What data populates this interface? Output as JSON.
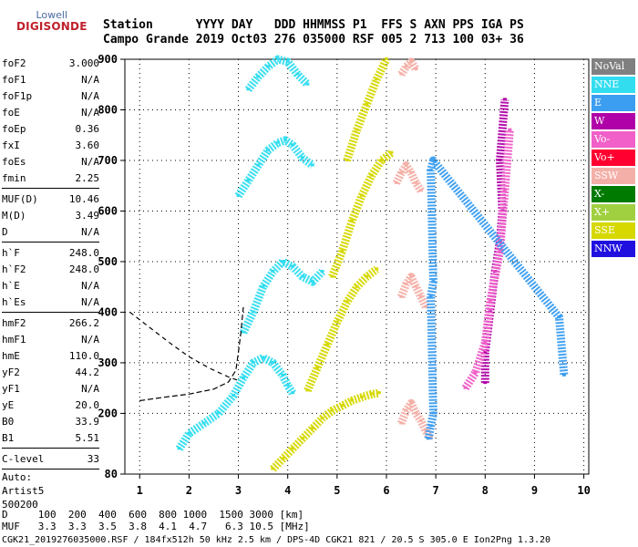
{
  "logo": {
    "line1": "Lowell",
    "line2": "DIGISONDE"
  },
  "header": {
    "labels": [
      "Station",
      "YYYY",
      "DAY",
      "DDD",
      "HHMMSS",
      "P1",
      "FFS",
      "S",
      "AXN",
      "PPS",
      "IGA",
      "PS"
    ],
    "values": [
      "Campo Grande",
      "2019",
      "Oct03",
      "276",
      "035000",
      "RSF",
      "005",
      "2",
      "713",
      "100",
      "03+",
      "36"
    ]
  },
  "params": [
    [
      {
        "name": "foF2",
        "value": "3.000"
      },
      {
        "name": "foF1",
        "value": "N/A"
      },
      {
        "name": "foF1p",
        "value": "N/A"
      },
      {
        "name": "foE",
        "value": "N/A"
      },
      {
        "name": "foEp",
        "value": "0.36"
      },
      {
        "name": "fxI",
        "value": "3.60"
      },
      {
        "name": "foEs",
        "value": "N/A"
      },
      {
        "name": "fmin",
        "value": "2.25"
      }
    ],
    [
      {
        "name": "MUF(D)",
        "value": "10.46"
      },
      {
        "name": "M(D)",
        "value": "3.49"
      },
      {
        "name": "D",
        "value": "N/A"
      }
    ],
    [
      {
        "name": "h`F",
        "value": "248.0"
      },
      {
        "name": "h`F2",
        "value": "248.0"
      },
      {
        "name": "h`E",
        "value": "N/A"
      },
      {
        "name": "h`Es",
        "value": "N/A"
      }
    ],
    [
      {
        "name": "hmF2",
        "value": "266.2"
      },
      {
        "name": "hmF1",
        "value": "N/A"
      },
      {
        "name": "hmE",
        "value": "110.0"
      },
      {
        "name": "yF2",
        "value": "44.2"
      },
      {
        "name": "yF1",
        "value": "N/A"
      },
      {
        "name": "yE",
        "value": "20.0"
      },
      {
        "name": "B0",
        "value": "33.9"
      },
      {
        "name": "B1",
        "value": "5.51"
      }
    ],
    [
      {
        "name": "C-level",
        "value": "33"
      }
    ]
  ],
  "auto": {
    "line1": "Auto:",
    "line2": "Artist5",
    "line3": "500200"
  },
  "legend": [
    {
      "label": "NoVal",
      "color": "#808080"
    },
    {
      "label": "NNE",
      "color": "#33ddf0"
    },
    {
      "label": "E",
      "color": "#3c9ef0"
    },
    {
      "label": "W",
      "color": "#b000a8"
    },
    {
      "label": "Vo-",
      "color": "#f060c8"
    },
    {
      "label": "Vo+",
      "color": "#ff0030"
    },
    {
      "label": "SSW",
      "color": "#f4b0a8"
    },
    {
      "label": "X-",
      "color": "#007a00"
    },
    {
      "label": "X+",
      "color": "#a0d040"
    },
    {
      "label": "SSE",
      "color": "#d6d800"
    },
    {
      "label": "NNW",
      "color": "#2010e0"
    }
  ],
  "bottom": {
    "d_label": "D",
    "d_values": [
      "100",
      "200",
      "400",
      "600",
      "800",
      "1000",
      "1500",
      "3000"
    ],
    "d_unit": "[km]",
    "muf_label": "MUF",
    "muf_values": [
      "3.3",
      "3.3",
      "3.5",
      "3.8",
      "4.1",
      "4.7",
      "6.3",
      "10.5"
    ],
    "muf_unit": "[MHz]"
  },
  "footer": "CGK21_2019276035000.RSF / 184fx512h 50 kHz 2.5 km / DPS-4D CGK21 821 / 20.5 S 305.0 E Ion2Png 1.3.20",
  "chart_data": {
    "type": "scatter",
    "xlim": [
      0.7,
      10.1
    ],
    "ylim": [
      80,
      900
    ],
    "x_ticks": [
      1,
      2,
      3,
      4,
      5,
      6,
      7,
      8,
      9,
      10
    ],
    "y_ticks": [
      80,
      200,
      300,
      400,
      500,
      600,
      700,
      800,
      900
    ],
    "grid": true,
    "traces": [
      {
        "name": "NNE",
        "color": "#33ddf0",
        "points": [
          [
            1.8,
            130
          ],
          [
            2.0,
            160
          ],
          [
            2.3,
            180
          ],
          [
            2.6,
            200
          ],
          [
            2.9,
            235
          ],
          [
            3.1,
            270
          ],
          [
            3.3,
            300
          ],
          [
            3.5,
            310
          ],
          [
            3.7,
            300
          ],
          [
            3.9,
            275
          ],
          [
            4.0,
            255
          ],
          [
            4.1,
            240
          ]
        ]
      },
      {
        "name": "NNE",
        "color": "#33ddf0",
        "points": [
          [
            3.1,
            360
          ],
          [
            3.3,
            400
          ],
          [
            3.5,
            450
          ],
          [
            3.7,
            480
          ],
          [
            3.9,
            500
          ],
          [
            4.1,
            490
          ],
          [
            4.3,
            470
          ],
          [
            4.5,
            460
          ],
          [
            4.7,
            480
          ]
        ]
      },
      {
        "name": "NNE",
        "color": "#33ddf0",
        "points": [
          [
            3.0,
            630
          ],
          [
            3.2,
            660
          ],
          [
            3.4,
            690
          ],
          [
            3.6,
            720
          ],
          [
            3.8,
            735
          ],
          [
            3.95,
            740
          ],
          [
            4.1,
            730
          ],
          [
            4.3,
            705
          ],
          [
            4.5,
            690
          ]
        ]
      },
      {
        "name": "NNE",
        "color": "#33ddf0",
        "points": [
          [
            3.2,
            840
          ],
          [
            3.4,
            865
          ],
          [
            3.6,
            885
          ],
          [
            3.8,
            900
          ],
          [
            4.0,
            895
          ],
          [
            4.2,
            870
          ],
          [
            4.4,
            850
          ]
        ]
      },
      {
        "name": "SSE",
        "color": "#d6d800",
        "points": [
          [
            3.7,
            90
          ],
          [
            3.9,
            110
          ],
          [
            4.1,
            130
          ],
          [
            4.3,
            150
          ],
          [
            4.5,
            170
          ],
          [
            4.7,
            190
          ],
          [
            4.9,
            205
          ],
          [
            5.1,
            215
          ],
          [
            5.3,
            225
          ],
          [
            5.5,
            232
          ],
          [
            5.7,
            238
          ],
          [
            5.85,
            240
          ]
        ]
      },
      {
        "name": "SSE",
        "color": "#d6d800",
        "points": [
          [
            4.4,
            245
          ],
          [
            4.6,
            290
          ],
          [
            4.8,
            335
          ],
          [
            5.0,
            380
          ],
          [
            5.2,
            420
          ],
          [
            5.4,
            450
          ],
          [
            5.6,
            470
          ],
          [
            5.8,
            485
          ]
        ]
      },
      {
        "name": "SSE",
        "color": "#d6d800",
        "points": [
          [
            4.9,
            470
          ],
          [
            5.1,
            520
          ],
          [
            5.3,
            580
          ],
          [
            5.5,
            630
          ],
          [
            5.7,
            670
          ],
          [
            5.9,
            700
          ],
          [
            6.1,
            715
          ]
        ]
      },
      {
        "name": "SSE",
        "color": "#d6d800",
        "points": [
          [
            5.2,
            700
          ],
          [
            5.4,
            760
          ],
          [
            5.6,
            810
          ],
          [
            5.8,
            860
          ],
          [
            6.0,
            900
          ]
        ]
      },
      {
        "name": "SSW",
        "color": "#f4b0a8",
        "points": [
          [
            6.3,
            180
          ],
          [
            6.4,
            205
          ],
          [
            6.5,
            220
          ],
          [
            6.6,
            200
          ],
          [
            6.7,
            185
          ],
          [
            6.8,
            165
          ],
          [
            6.9,
            150
          ]
        ]
      },
      {
        "name": "SSW",
        "color": "#f4b0a8",
        "points": [
          [
            6.3,
            430
          ],
          [
            6.4,
            455
          ],
          [
            6.5,
            470
          ],
          [
            6.6,
            450
          ],
          [
            6.7,
            430
          ],
          [
            6.8,
            410
          ]
        ]
      },
      {
        "name": "SSW",
        "color": "#f4b0a8",
        "points": [
          [
            6.2,
            655
          ],
          [
            6.3,
            675
          ],
          [
            6.4,
            690
          ],
          [
            6.5,
            675
          ],
          [
            6.6,
            655
          ],
          [
            6.7,
            640
          ]
        ]
      },
      {
        "name": "SSW",
        "color": "#f4b0a8",
        "points": [
          [
            6.3,
            870
          ],
          [
            6.4,
            885
          ],
          [
            6.5,
            895
          ],
          [
            6.6,
            880
          ]
        ]
      },
      {
        "name": "W",
        "color": "#b000a8",
        "points": [
          [
            8.0,
            260
          ],
          [
            8.0,
            320
          ],
          [
            8.1,
            400
          ],
          [
            8.2,
            480
          ],
          [
            8.3,
            540
          ],
          [
            8.35,
            600
          ],
          [
            8.3,
            700
          ],
          [
            8.4,
            820
          ]
        ]
      },
      {
        "name": "Vo-",
        "color": "#f060c8",
        "points": [
          [
            7.6,
            250
          ],
          [
            7.8,
            280
          ],
          [
            8.0,
            340
          ],
          [
            8.1,
            420
          ],
          [
            8.3,
            520
          ],
          [
            8.4,
            640
          ],
          [
            8.5,
            760
          ]
        ]
      },
      {
        "name": "E",
        "color": "#3c9ef0",
        "points": [
          [
            6.85,
            150
          ],
          [
            6.9,
            175
          ],
          [
            6.95,
            200
          ],
          [
            6.9,
            430
          ],
          [
            6.95,
            460
          ],
          [
            6.9,
            680
          ],
          [
            6.95,
            700
          ],
          [
            9.5,
            390
          ],
          [
            9.6,
            275
          ]
        ]
      }
    ],
    "model_curves": [
      {
        "points": [
          [
            1.0,
            225
          ],
          [
            1.5,
            232
          ],
          [
            2.0,
            238
          ],
          [
            2.5,
            248
          ],
          [
            2.8,
            262
          ],
          [
            2.95,
            285
          ],
          [
            3.0,
            320
          ],
          [
            3.05,
            360
          ],
          [
            3.1,
            410
          ]
        ]
      },
      {
        "points": [
          [
            0.8,
            400
          ],
          [
            1.2,
            370
          ],
          [
            1.6,
            340
          ],
          [
            2.0,
            312
          ],
          [
            2.4,
            290
          ],
          [
            2.8,
            272
          ],
          [
            3.0,
            265
          ]
        ]
      }
    ]
  }
}
